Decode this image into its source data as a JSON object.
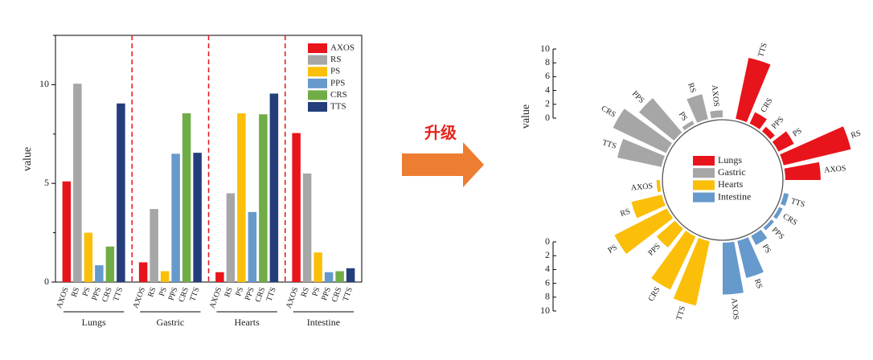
{
  "colors": {
    "AXOS": "#e8141b",
    "RS": "#a6a6a6",
    "PS": "#fbbf0a",
    "PPS": "#6699cc",
    "CRS": "#70ad47",
    "TTS": "#233e7a",
    "Lungs": "#e8141b",
    "Gastric": "#a6a6a6",
    "Hearts": "#fbbf0a",
    "Intestine": "#6699cc",
    "divider": "#e8141b",
    "arrow": "#ed7d31",
    "arrow_text": "#e8231c"
  },
  "arrow": {
    "label": "升级",
    "icon": "right-arrow-icon"
  },
  "chart_data": [
    {
      "type": "bar",
      "ylabel": "value",
      "ylim": [
        0,
        12.5
      ],
      "yticks": [
        "0",
        "5",
        "10"
      ],
      "legend": {
        "placement": "top-right",
        "entries": [
          "AXOS",
          "RS",
          "PS",
          "PPS",
          "CRS",
          "TTS"
        ]
      },
      "categories": [
        "AXOS",
        "RS",
        "PS",
        "PPS",
        "CRS",
        "TTS"
      ],
      "groups": [
        {
          "name": "Lungs",
          "values": [
            5.1,
            10.05,
            2.5,
            0.85,
            1.8,
            9.05
          ]
        },
        {
          "name": "Gastric",
          "values": [
            1.0,
            3.7,
            0.55,
            6.5,
            8.55,
            6.55
          ]
        },
        {
          "name": "Hearts",
          "values": [
            0.5,
            4.5,
            8.55,
            3.55,
            8.5,
            9.55
          ]
        },
        {
          "name": "Intestine",
          "values": [
            7.55,
            5.5,
            1.5,
            0.5,
            0.55,
            0.7
          ]
        }
      ],
      "grid": false
    },
    {
      "type": "radial-bar",
      "ylabel": "value",
      "ylim": [
        0,
        10
      ],
      "ticks_top": [
        "10",
        "8",
        "6",
        "4",
        "2",
        "0"
      ],
      "ticks_bottom": [
        "0",
        "2",
        "4",
        "6",
        "8",
        "10"
      ],
      "legend": {
        "placement": "center",
        "entries": [
          "Lungs",
          "Gastric",
          "Hearts",
          "Intestine"
        ]
      },
      "groups": [
        {
          "name": "Lungs",
          "bars": [
            {
              "label": "TTS",
              "value": 9.0
            },
            {
              "label": "CRS",
              "value": 1.8
            },
            {
              "label": "PPS",
              "value": 0.85
            },
            {
              "label": "PS",
              "value": 2.5
            },
            {
              "label": "RS",
              "value": 10.0
            },
            {
              "label": "AXOS",
              "value": 5.1
            }
          ]
        },
        {
          "name": "Intestine",
          "bars": [
            {
              "label": "TTS",
              "value": 0.7
            },
            {
              "label": "CRS",
              "value": 0.55
            },
            {
              "label": "PPS",
              "value": 0.5
            },
            {
              "label": "PS",
              "value": 1.5
            },
            {
              "label": "RS",
              "value": 5.5
            },
            {
              "label": "AXOS",
              "value": 7.5
            }
          ]
        },
        {
          "name": "Hearts",
          "bars": [
            {
              "label": "TTS",
              "value": 9.5
            },
            {
              "label": "CRS",
              "value": 8.5
            },
            {
              "label": "PPS",
              "value": 3.5
            },
            {
              "label": "PS",
              "value": 8.5
            },
            {
              "label": "RS",
              "value": 4.5
            },
            {
              "label": "AXOS",
              "value": 0.5
            }
          ]
        },
        {
          "name": "Gastric",
          "bars": [
            {
              "label": "TTS",
              "value": 6.5
            },
            {
              "label": "CRS",
              "value": 8.5
            },
            {
              "label": "PPS",
              "value": 6.5
            },
            {
              "label": "PS",
              "value": 0.55
            },
            {
              "label": "RS",
              "value": 3.7
            },
            {
              "label": "AXOS",
              "value": 1.0
            }
          ]
        }
      ]
    }
  ]
}
